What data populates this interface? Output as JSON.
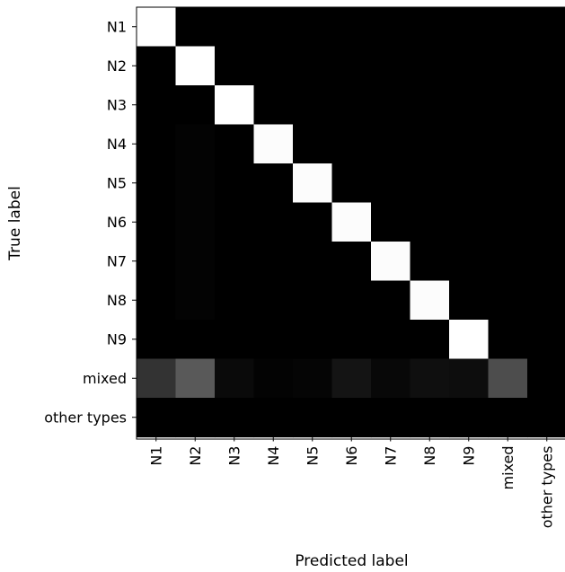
{
  "chart_data": {
    "type": "heatmap",
    "title": "",
    "xlabel": "Predicted label",
    "ylabel": "True label",
    "x_categories": [
      "N1",
      "N2",
      "N3",
      "N4",
      "N5",
      "N6",
      "N7",
      "N8",
      "N9",
      "mixed",
      "other types"
    ],
    "y_categories": [
      "N1",
      "N2",
      "N3",
      "N4",
      "N5",
      "N6",
      "N7",
      "N8",
      "N9",
      "mixed",
      "other types"
    ],
    "colormap": "gray",
    "value_range": [
      0,
      1
    ],
    "grid": false,
    "colorbar": false,
    "values": [
      [
        1.0,
        0.0,
        0.0,
        0.0,
        0.0,
        0.0,
        0.0,
        0.0,
        0.0,
        0.0,
        0.0
      ],
      [
        0.0,
        1.0,
        0.0,
        0.0,
        0.0,
        0.0,
        0.0,
        0.0,
        0.0,
        0.0,
        0.0
      ],
      [
        0.0,
        0.0,
        1.0,
        0.0,
        0.0,
        0.0,
        0.0,
        0.0,
        0.0,
        0.0,
        0.0
      ],
      [
        0.0,
        0.01,
        0.0,
        0.99,
        0.0,
        0.0,
        0.0,
        0.0,
        0.0,
        0.0,
        0.0
      ],
      [
        0.0,
        0.01,
        0.0,
        0.0,
        0.99,
        0.0,
        0.0,
        0.0,
        0.0,
        0.0,
        0.0
      ],
      [
        0.0,
        0.01,
        0.0,
        0.0,
        0.0,
        0.99,
        0.0,
        0.0,
        0.0,
        0.0,
        0.0
      ],
      [
        0.0,
        0.01,
        0.0,
        0.0,
        0.0,
        0.0,
        0.99,
        0.0,
        0.0,
        0.0,
        0.0
      ],
      [
        0.0,
        0.01,
        0.0,
        0.0,
        0.0,
        0.0,
        0.0,
        0.99,
        0.0,
        0.0,
        0.0
      ],
      [
        0.0,
        0.0,
        0.0,
        0.0,
        0.0,
        0.0,
        0.0,
        0.0,
        1.0,
        0.0,
        0.0
      ],
      [
        0.2,
        0.35,
        0.04,
        0.01,
        0.02,
        0.08,
        0.03,
        0.06,
        0.05,
        0.3,
        0.0
      ],
      [
        0.0,
        0.0,
        0.0,
        0.0,
        0.0,
        0.0,
        0.0,
        0.0,
        0.0,
        0.0,
        0.0
      ]
    ]
  }
}
